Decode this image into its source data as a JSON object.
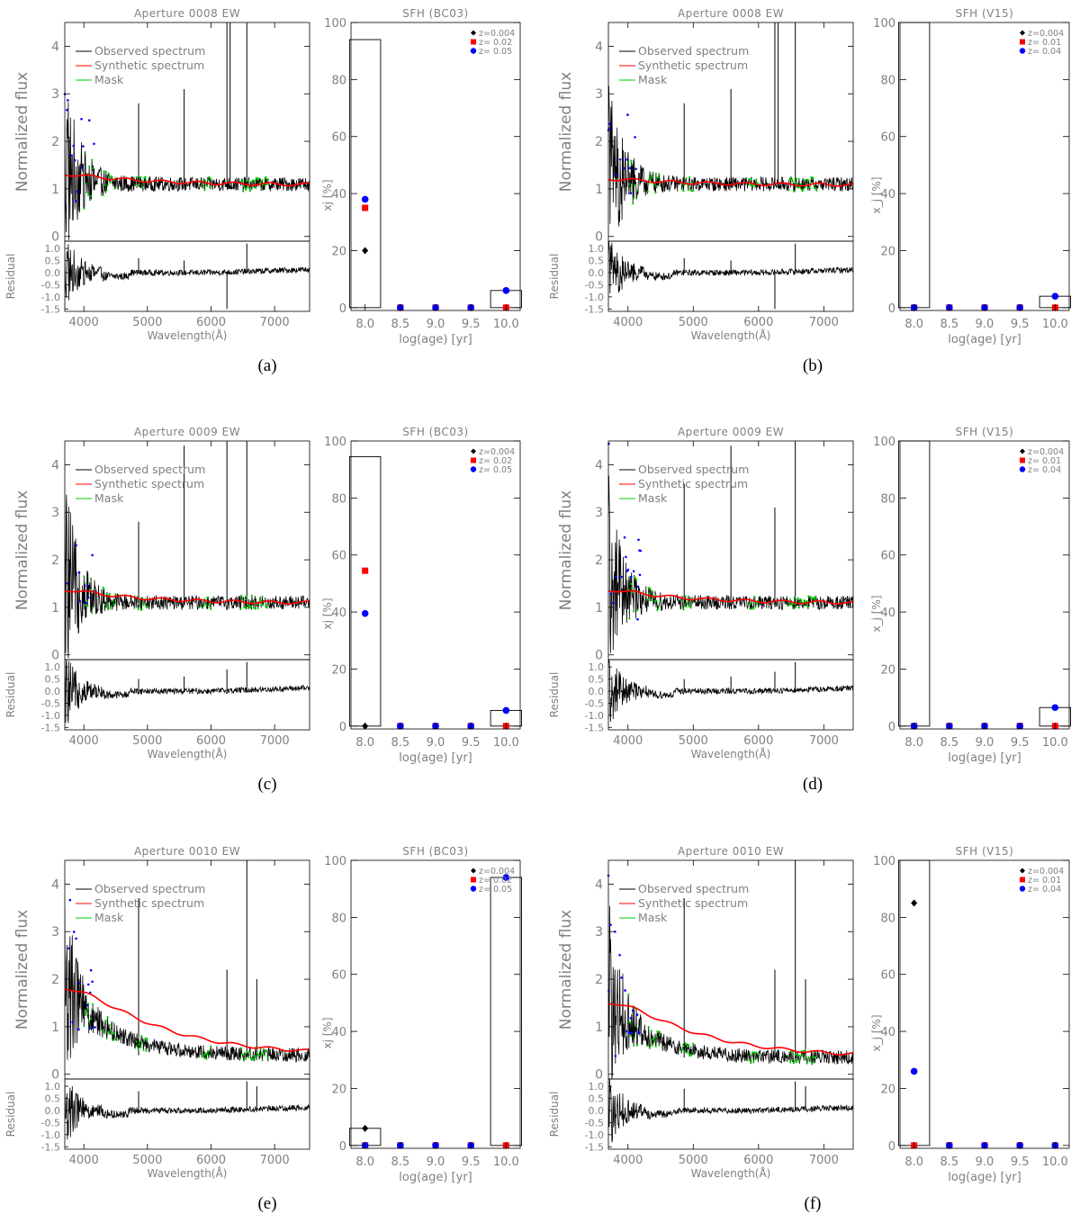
{
  "captions": [
    "(a)",
    "(b)",
    "(c)",
    "(d)",
    "(e)",
    "(f)"
  ],
  "spectrum_labels": {
    "ylabel": "Normalized flux",
    "residual_label": "Residual",
    "xlabel": "Wavelength(Å)",
    "legend": [
      "Observed spectrum",
      "Synthetic spectrum",
      "Mask"
    ]
  },
  "sfh_labels": {
    "xlabel": "log(age) [yr]",
    "age_ticks": [
      "8.0",
      "8.5",
      "9.0",
      "9.5",
      "10.0"
    ]
  },
  "colors": {
    "observed": "#000000",
    "synthetic": "#ff0000",
    "mask": "#00cc00",
    "clipped": "#0000ff",
    "frame": "#000000",
    "text": "#808080"
  },
  "chart_data": [
    {
      "id": "a",
      "type": "line",
      "spectrum": {
        "title": "Aperture 0008 EW",
        "xlim": [
          3700,
          7550
        ],
        "ylim": [
          -0.1,
          4.5
        ],
        "xticks": [
          4000,
          5000,
          6000,
          7000
        ],
        "yticks": [
          0,
          1,
          2,
          3,
          4
        ],
        "residual_ylim": [
          -1.6,
          1.3
        ],
        "residual_ticks": [
          1.0,
          0.5,
          0.0,
          -0.5,
          -1.0,
          -1.5
        ],
        "continuum_level": 1.1,
        "blue_excess": 0.3,
        "blue_decay_A": 300,
        "synthetic_start": 1.3,
        "emission_lines": [
          {
            "x": 4861,
            "y": 2.8
          },
          {
            "x": 5577,
            "y": 3.1
          },
          {
            "x": 6250,
            "y": 4.5
          },
          {
            "x": 6300,
            "y": 4.5
          },
          {
            "x": 6563,
            "y": 4.5
          }
        ],
        "residual_spikes": [
          {
            "x": 4861,
            "y": 0.6
          },
          {
            "x": 5577,
            "y": 0.5
          },
          {
            "x": 6250,
            "y": -1.5
          },
          {
            "x": 6563,
            "y": 1.2
          }
        ]
      },
      "sfh": {
        "title": "SFH (BC03)",
        "ylabel": "xj [%]",
        "xlim": [
          7.8,
          10.2
        ],
        "ylim": [
          -1,
          100
        ],
        "yticks": [
          0,
          20,
          40,
          60,
          80,
          100
        ],
        "legend": [
          "z=0.004",
          "z= 0.02",
          "z= 0.05"
        ],
        "bars": [
          {
            "x": 8.0,
            "value": 94
          },
          {
            "x": 10.0,
            "value": 6
          }
        ],
        "series": [
          {
            "name": "z=0.004",
            "marker": "diamond",
            "color": "#000000",
            "x": [
              8.0,
              8.5,
              9.0,
              9.5,
              10.0
            ],
            "y": [
              20,
              0,
              0,
              0,
              0
            ]
          },
          {
            "name": "z= 0.02",
            "marker": "square",
            "color": "#ff0000",
            "x": [
              8.0,
              8.5,
              9.0,
              9.5,
              10.0
            ],
            "y": [
              35,
              0,
              0,
              0,
              0
            ]
          },
          {
            "name": "z= 0.05",
            "marker": "circle",
            "color": "#0000ff",
            "x": [
              8.0,
              8.5,
              9.0,
              9.5,
              10.0
            ],
            "y": [
              38,
              0,
              0,
              0,
              6
            ]
          }
        ]
      }
    },
    {
      "id": "b",
      "type": "line",
      "spectrum": {
        "title": "Aperture 0008 EW",
        "xlim": [
          3700,
          7450
        ],
        "ylim": [
          -0.1,
          4.5
        ],
        "xticks": [
          4000,
          5000,
          6000,
          7000
        ],
        "yticks": [
          0,
          1,
          2,
          3,
          4
        ],
        "residual_ylim": [
          -1.6,
          1.3
        ],
        "residual_ticks": [
          1.0,
          0.5,
          0.0,
          -0.5,
          -1.0,
          -1.5
        ],
        "continuum_level": 1.1,
        "blue_excess": 0.25,
        "blue_decay_A": 300,
        "synthetic_start": 1.2,
        "emission_lines": [
          {
            "x": 4861,
            "y": 2.8
          },
          {
            "x": 5577,
            "y": 3.1
          },
          {
            "x": 6250,
            "y": 4.5
          },
          {
            "x": 6300,
            "y": 4.5
          },
          {
            "x": 6563,
            "y": 4.5
          }
        ],
        "residual_spikes": [
          {
            "x": 4861,
            "y": 0.6
          },
          {
            "x": 5577,
            "y": 0.5
          },
          {
            "x": 6250,
            "y": -1.5
          },
          {
            "x": 6563,
            "y": 1.2
          }
        ]
      },
      "sfh": {
        "title": "SFH (V15)",
        "ylabel": "x_j [%]",
        "xlim": [
          7.8,
          10.2
        ],
        "ylim": [
          -1,
          100
        ],
        "yticks": [
          0,
          20,
          40,
          60,
          80,
          100
        ],
        "legend": [
          "z=0.004",
          "z= 0.01",
          "z= 0.04"
        ],
        "bars": [
          {
            "x": 8.0,
            "value": 100
          },
          {
            "x": 10.0,
            "value": 4
          }
        ],
        "series": [
          {
            "name": "z=0.004",
            "marker": "diamond",
            "color": "#000000",
            "x": [
              8.0,
              8.5,
              9.0,
              9.5,
              10.0
            ],
            "y": [
              0,
              0,
              0,
              0,
              0
            ]
          },
          {
            "name": "z= 0.01",
            "marker": "square",
            "color": "#ff0000",
            "x": [
              8.0,
              8.5,
              9.0,
              9.5,
              10.0
            ],
            "y": [
              0,
              0,
              0,
              0,
              0
            ]
          },
          {
            "name": "z= 0.04",
            "marker": "circle",
            "color": "#0000ff",
            "x": [
              8.0,
              8.5,
              9.0,
              9.5,
              10.0
            ],
            "y": [
              0,
              0,
              0,
              0,
              4
            ]
          }
        ]
      }
    },
    {
      "id": "c",
      "type": "line",
      "spectrum": {
        "title": "Aperture 0009 EW",
        "xlim": [
          3700,
          7550
        ],
        "ylim": [
          -0.1,
          4.5
        ],
        "xticks": [
          4000,
          5000,
          6000,
          7000
        ],
        "yticks": [
          0,
          1,
          2,
          3,
          4
        ],
        "residual_ylim": [
          -1.6,
          1.3
        ],
        "residual_ticks": [
          1.0,
          0.5,
          0.0,
          -0.5,
          -1.0,
          -1.5
        ],
        "continuum_level": 1.1,
        "blue_excess": 0.6,
        "blue_decay_A": 250,
        "synthetic_start": 1.35,
        "emission_lines": [
          {
            "x": 4861,
            "y": 2.8
          },
          {
            "x": 5577,
            "y": 4.4
          },
          {
            "x": 6250,
            "y": 4.5
          },
          {
            "x": 6563,
            "y": 4.5
          }
        ],
        "residual_spikes": [
          {
            "x": 4861,
            "y": 0.5
          },
          {
            "x": 5577,
            "y": 0.6
          },
          {
            "x": 6250,
            "y": 0.9
          },
          {
            "x": 6563,
            "y": 1.2
          }
        ]
      },
      "sfh": {
        "title": "SFH (BC03)",
        "ylabel": "xj [%]",
        "xlim": [
          7.8,
          10.2
        ],
        "ylim": [
          -1,
          100
        ],
        "yticks": [
          0,
          20,
          40,
          60,
          80,
          100
        ],
        "legend": [
          "z=0.004",
          "z= 0.02",
          "z= 0.05"
        ],
        "bars": [
          {
            "x": 8.0,
            "value": 94.5
          },
          {
            "x": 10.0,
            "value": 5.5
          }
        ],
        "series": [
          {
            "name": "z=0.004",
            "marker": "diamond",
            "color": "#000000",
            "x": [
              8.0,
              8.5,
              9.0,
              9.5,
              10.0
            ],
            "y": [
              0,
              0,
              0,
              0,
              0
            ]
          },
          {
            "name": "z= 0.02",
            "marker": "square",
            "color": "#ff0000",
            "x": [
              8.0,
              8.5,
              9.0,
              9.5,
              10.0
            ],
            "y": [
              54.5,
              0,
              0,
              0,
              0
            ]
          },
          {
            "name": "z= 0.05",
            "marker": "circle",
            "color": "#0000ff",
            "x": [
              8.0,
              8.5,
              9.0,
              9.5,
              10.0
            ],
            "y": [
              39.5,
              0,
              0,
              0,
              5.5
            ]
          }
        ]
      }
    },
    {
      "id": "d",
      "type": "line",
      "spectrum": {
        "title": "Aperture 0009 EW",
        "xlim": [
          3700,
          7450
        ],
        "ylim": [
          -0.1,
          4.5
        ],
        "xticks": [
          4000,
          5000,
          6000,
          7000
        ],
        "yticks": [
          0,
          1,
          2,
          3,
          4
        ],
        "residual_ylim": [
          -1.6,
          1.3
        ],
        "residual_ticks": [
          1.0,
          0.5,
          0.0,
          -0.5,
          -1.0,
          -1.5
        ],
        "continuum_level": 1.1,
        "blue_excess": 0.6,
        "blue_decay_A": 250,
        "synthetic_start": 1.35,
        "emission_lines": [
          {
            "x": 4861,
            "y": 3.6
          },
          {
            "x": 5577,
            "y": 4.4
          },
          {
            "x": 6250,
            "y": 3.1
          },
          {
            "x": 6563,
            "y": 4.5
          }
        ],
        "residual_spikes": [
          {
            "x": 4861,
            "y": 0.5
          },
          {
            "x": 5577,
            "y": 0.6
          },
          {
            "x": 6250,
            "y": 0.8
          },
          {
            "x": 6563,
            "y": 1.2
          }
        ]
      },
      "sfh": {
        "title": "SFH (V15)",
        "ylabel": "x_j [%]",
        "xlim": [
          7.8,
          10.2
        ],
        "ylim": [
          -1,
          100
        ],
        "yticks": [
          0,
          20,
          40,
          60,
          80,
          100
        ],
        "legend": [
          "z=0.004",
          "z= 0.01",
          "z= 0.04"
        ],
        "bars": [
          {
            "x": 8.0,
            "value": 100
          },
          {
            "x": 10.0,
            "value": 6.5
          }
        ],
        "series": [
          {
            "name": "z=0.004",
            "marker": "diamond",
            "color": "#000000",
            "x": [
              8.0,
              8.5,
              9.0,
              9.5,
              10.0
            ],
            "y": [
              0,
              0,
              0,
              0,
              0
            ]
          },
          {
            "name": "z= 0.01",
            "marker": "square",
            "color": "#ff0000",
            "x": [
              8.0,
              8.5,
              9.0,
              9.5,
              10.0
            ],
            "y": [
              0,
              0,
              0,
              0,
              0
            ]
          },
          {
            "name": "z= 0.04",
            "marker": "circle",
            "color": "#0000ff",
            "x": [
              8.0,
              8.5,
              9.0,
              9.5,
              10.0
            ],
            "y": [
              0,
              0,
              0,
              0,
              6.5
            ]
          }
        ]
      }
    },
    {
      "id": "e",
      "type": "line",
      "spectrum": {
        "title": "Aperture 0010 EW",
        "xlim": [
          3700,
          7550
        ],
        "ylim": [
          -0.1,
          4.5
        ],
        "xticks": [
          4000,
          5000,
          6000,
          7000
        ],
        "yticks": [
          0,
          1,
          2,
          3,
          4
        ],
        "residual_ylim": [
          -1.6,
          1.3
        ],
        "residual_ticks": [
          1.0,
          0.5,
          0.0,
          -0.5,
          -1.0,
          -1.5
        ],
        "continuum_level": 0.4,
        "blue_excess": 1.5,
        "blue_decay_A": 700,
        "synthetic_start": 1.8,
        "emission_lines": [
          {
            "x": 4861,
            "y": 3.7
          },
          {
            "x": 6250,
            "y": 2.2
          },
          {
            "x": 6563,
            "y": 4.5
          },
          {
            "x": 6720,
            "y": 2.0
          }
        ],
        "residual_spikes": [
          {
            "x": 4861,
            "y": 0.8
          },
          {
            "x": 6563,
            "y": 1.2
          },
          {
            "x": 6720,
            "y": 1.0
          }
        ]
      },
      "sfh": {
        "title": "SFH (BC03)",
        "ylabel": "xj [%]",
        "xlim": [
          7.8,
          10.2
        ],
        "ylim": [
          -1,
          100
        ],
        "yticks": [
          0,
          20,
          40,
          60,
          80,
          100
        ],
        "legend": [
          "z=0.004",
          "z= 0.02",
          "z= 0.05"
        ],
        "bars": [
          {
            "x": 8.0,
            "value": 6
          },
          {
            "x": 10.0,
            "value": 94
          }
        ],
        "series": [
          {
            "name": "z=0.004",
            "marker": "diamond",
            "color": "#000000",
            "x": [
              8.0,
              8.5,
              9.0,
              9.5,
              10.0
            ],
            "y": [
              6,
              0,
              0,
              0,
              0
            ]
          },
          {
            "name": "z= 0.02",
            "marker": "square",
            "color": "#ff0000",
            "x": [
              8.0,
              8.5,
              9.0,
              9.5,
              10.0
            ],
            "y": [
              0,
              0,
              0,
              0,
              0
            ]
          },
          {
            "name": "z= 0.05",
            "marker": "circle",
            "color": "#0000ff",
            "x": [
              8.0,
              8.5,
              9.0,
              9.5,
              10.0
            ],
            "y": [
              0,
              0,
              0,
              0,
              94
            ]
          }
        ]
      }
    },
    {
      "id": "f",
      "type": "line",
      "spectrum": {
        "title": "Aperture 0010 EW",
        "xlim": [
          3700,
          7450
        ],
        "ylim": [
          -0.1,
          4.5
        ],
        "xticks": [
          4000,
          5000,
          6000,
          7000
        ],
        "yticks": [
          0,
          1,
          2,
          3,
          4
        ],
        "residual_ylim": [
          -1.6,
          1.3
        ],
        "residual_ticks": [
          1.0,
          0.5,
          0.0,
          -0.5,
          -1.0,
          -1.5
        ],
        "continuum_level": 0.35,
        "blue_excess": 1.3,
        "blue_decay_A": 600,
        "synthetic_start": 1.5,
        "emission_lines": [
          {
            "x": 4861,
            "y": 3.7
          },
          {
            "x": 6250,
            "y": 2.2
          },
          {
            "x": 6563,
            "y": 4.5
          },
          {
            "x": 6720,
            "y": 2.0
          }
        ],
        "residual_spikes": [
          {
            "x": 4861,
            "y": 0.9
          },
          {
            "x": 6563,
            "y": 1.2
          },
          {
            "x": 6720,
            "y": 1.0
          }
        ]
      },
      "sfh": {
        "title": "SFH (V15)",
        "ylabel": "x_j [%]",
        "xlim": [
          7.8,
          10.2
        ],
        "ylim": [
          -1,
          100
        ],
        "yticks": [
          0,
          20,
          40,
          60,
          80,
          100
        ],
        "legend": [
          "z=0.004",
          "z= 0.01",
          "z= 0.04"
        ],
        "bars": [
          {
            "x": 8.0,
            "value": 100
          }
        ],
        "series": [
          {
            "name": "z=0.004",
            "marker": "diamond",
            "color": "#000000",
            "x": [
              8.0,
              8.5,
              9.0,
              9.5,
              10.0
            ],
            "y": [
              85,
              0,
              0,
              0,
              0
            ]
          },
          {
            "name": "z= 0.01",
            "marker": "square",
            "color": "#ff0000",
            "x": [
              8.0,
              8.5,
              9.0,
              9.5,
              10.0
            ],
            "y": [
              0,
              0,
              0,
              0,
              0
            ]
          },
          {
            "name": "z= 0.04",
            "marker": "circle",
            "color": "#0000ff",
            "x": [
              8.0,
              8.5,
              9.0,
              9.5,
              10.0
            ],
            "y": [
              26,
              0,
              0,
              0,
              0
            ]
          }
        ]
      }
    }
  ]
}
